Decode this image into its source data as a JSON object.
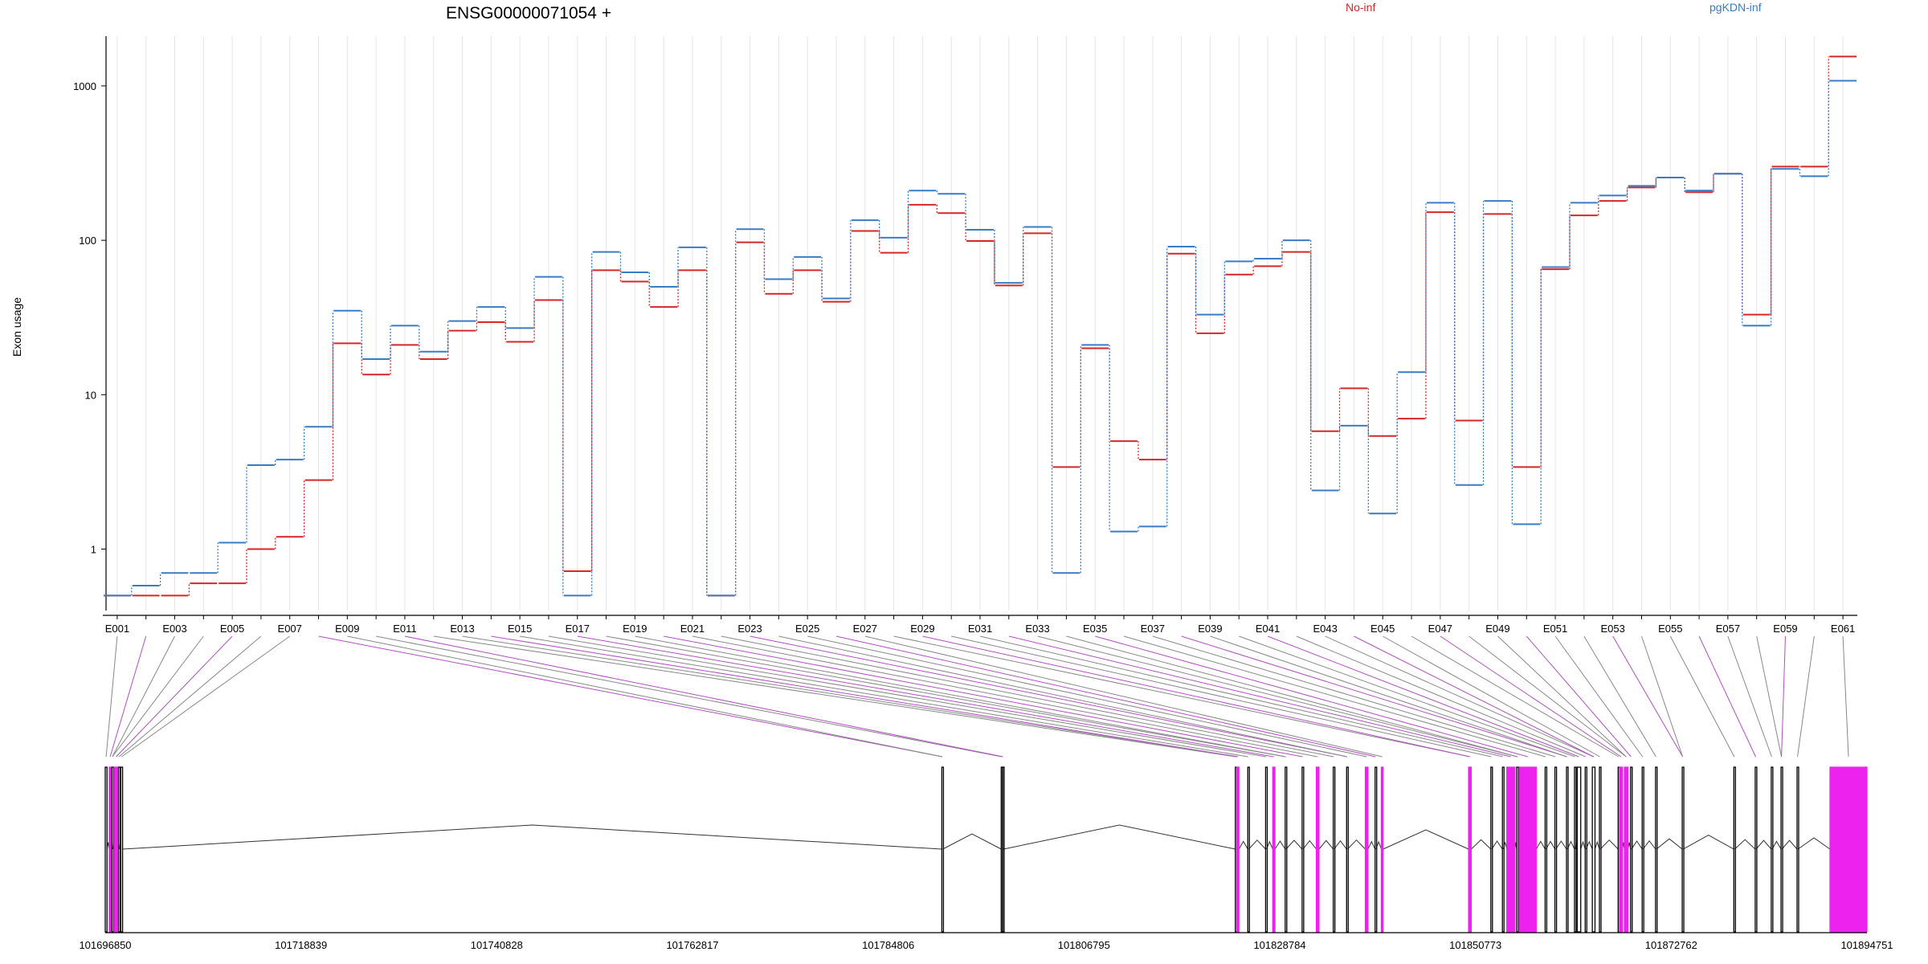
{
  "chart_data": {
    "type": "line",
    "title": "ENSG00000071054 +",
    "ylabel": "Exon usage",
    "xlabel": "",
    "yscale": "log",
    "ylim": [
      0.4,
      2100
    ],
    "yticks": [
      1,
      10,
      100,
      1000
    ],
    "ytick_labels": [
      "1",
      "10",
      "100",
      "1000"
    ],
    "grid": "vertical lines at each exon",
    "legend_placement": "top",
    "colors": {
      "No-inf": "#d62728",
      "pgKDN-inf": "#3a7cc4",
      "exon_black": "#000000",
      "exon_magenta": "#ee22ee",
      "connector_gray": "#888888",
      "connector_purple": "#b050c0"
    },
    "exons": [
      "E001",
      "E002",
      "E003",
      "E004",
      "E005",
      "E006",
      "E007",
      "E008",
      "E009",
      "E010",
      "E011",
      "E012",
      "E013",
      "E014",
      "E015",
      "E016",
      "E017",
      "E018",
      "E019",
      "E020",
      "E021",
      "E022",
      "E023",
      "E024",
      "E025",
      "E026",
      "E027",
      "E028",
      "E029",
      "E030",
      "E031",
      "E032",
      "E033",
      "E034",
      "E035",
      "E036",
      "E037",
      "E038",
      "E039",
      "E040",
      "E041",
      "E042",
      "E043",
      "E044",
      "E045",
      "E046",
      "E047",
      "E048",
      "E049",
      "E050",
      "E051",
      "E052",
      "E053",
      "E054",
      "E055",
      "E056",
      "E057",
      "E058",
      "E059",
      "E060",
      "E061"
    ],
    "x_tick_labels": [
      "E001",
      "E003",
      "E005",
      "E007",
      "E009",
      "E011",
      "E013",
      "E015",
      "E017",
      "E019",
      "E021",
      "E023",
      "E025",
      "E027",
      "E029",
      "E031",
      "E033",
      "E035",
      "E037",
      "E039",
      "E041",
      "E043",
      "E045",
      "E047",
      "E049",
      "E051",
      "E053",
      "E055",
      "E057",
      "E059",
      "E061"
    ],
    "series": [
      {
        "name": "No-inf",
        "color": "#d62728",
        "values": [
          0.5,
          0.5,
          0.5,
          0.6,
          0.6,
          1.0,
          1.2,
          2.8,
          21.5,
          13.5,
          21,
          17,
          26,
          29.5,
          22,
          41,
          0.72,
          64,
          54,
          37,
          64,
          0.5,
          97,
          45,
          64,
          40,
          115,
          83,
          170,
          150,
          99,
          51,
          111,
          3.4,
          20,
          5.0,
          3.8,
          82,
          25,
          60,
          68,
          84,
          5.8,
          11,
          5.4,
          7.0,
          152,
          6.8,
          148,
          3.4,
          65,
          145,
          180,
          220,
          255,
          205,
          270,
          33,
          300,
          300,
          1550
        ]
      },
      {
        "name": "pgKDN-inf",
        "color": "#3a7cc4",
        "values": [
          0.5,
          0.58,
          0.7,
          0.7,
          1.1,
          3.5,
          3.8,
          6.2,
          35,
          17,
          28,
          19,
          30,
          37,
          27,
          58,
          0.5,
          84,
          62,
          50,
          90,
          0.5,
          118,
          56,
          78,
          42,
          135,
          104,
          210,
          200,
          117,
          53,
          122,
          0.7,
          21,
          1.3,
          1.4,
          91,
          33,
          73,
          76,
          100,
          2.4,
          6.3,
          1.7,
          14,
          175,
          2.6,
          180,
          1.45,
          67,
          175,
          195,
          225,
          255,
          210,
          270,
          28,
          290,
          260,
          1080
        ]
      }
    ]
  },
  "title": "ENSG00000071054 +",
  "legend": [
    {
      "label": "No-inf",
      "color": "#d62728"
    },
    {
      "label": "pgKDN-inf",
      "color": "#3a7cc4"
    }
  ],
  "genomic_axis": {
    "labels": [
      "101696850",
      "101718839",
      "101740828",
      "101762817",
      "101784806",
      "101806795",
      "101828784",
      "101850773",
      "101872762",
      "101894751"
    ],
    "range": [
      101696850,
      101894751
    ]
  },
  "gene_model": {
    "exons": [
      {
        "start": 101696850,
        "end": 101697050,
        "type": "black"
      },
      {
        "start": 101697300,
        "end": 101697500,
        "type": "magenta"
      },
      {
        "start": 101697600,
        "end": 101697700,
        "type": "black"
      },
      {
        "start": 101697850,
        "end": 101698300,
        "type": "magenta"
      },
      {
        "start": 101698350,
        "end": 101698450,
        "type": "black"
      },
      {
        "start": 101698600,
        "end": 101698800,
        "type": "black"
      },
      {
        "start": 101790830,
        "end": 101790930,
        "type": "black"
      },
      {
        "start": 101797500,
        "end": 101797600,
        "type": "black"
      },
      {
        "start": 101797650,
        "end": 101797750,
        "type": "black"
      },
      {
        "start": 101823800,
        "end": 101823900,
        "type": "black"
      },
      {
        "start": 101823950,
        "end": 101824200,
        "type": "magenta"
      },
      {
        "start": 101825200,
        "end": 101825300,
        "type": "black"
      },
      {
        "start": 101827200,
        "end": 101827300,
        "type": "black"
      },
      {
        "start": 101828000,
        "end": 101828250,
        "type": "magenta"
      },
      {
        "start": 101829400,
        "end": 101829500,
        "type": "black"
      },
      {
        "start": 101831300,
        "end": 101831400,
        "type": "black"
      },
      {
        "start": 101832900,
        "end": 101833200,
        "type": "magenta"
      },
      {
        "start": 101834800,
        "end": 101834900,
        "type": "black"
      },
      {
        "start": 101836300,
        "end": 101836400,
        "type": "black"
      },
      {
        "start": 101838400,
        "end": 101838700,
        "type": "magenta"
      },
      {
        "start": 101839500,
        "end": 101839600,
        "type": "black"
      },
      {
        "start": 101840200,
        "end": 101840400,
        "type": "magenta"
      },
      {
        "start": 101850000,
        "end": 101850300,
        "type": "magenta"
      },
      {
        "start": 101852500,
        "end": 101852600,
        "type": "black"
      },
      {
        "start": 101853800,
        "end": 101853900,
        "type": "black"
      },
      {
        "start": 101854300,
        "end": 101855200,
        "type": "magenta"
      },
      {
        "start": 101855400,
        "end": 101855600,
        "type": "black"
      },
      {
        "start": 101855700,
        "end": 101857600,
        "type": "magenta"
      },
      {
        "start": 101858600,
        "end": 101858700,
        "type": "black"
      },
      {
        "start": 101859700,
        "end": 101859800,
        "type": "black"
      },
      {
        "start": 101861000,
        "end": 101861100,
        "type": "black"
      },
      {
        "start": 101861900,
        "end": 101862000,
        "type": "black"
      },
      {
        "start": 101862200,
        "end": 101862600,
        "type": "black"
      },
      {
        "start": 101863100,
        "end": 101863200,
        "type": "black"
      },
      {
        "start": 101863900,
        "end": 101864200,
        "type": "black"
      },
      {
        "start": 101864700,
        "end": 101864800,
        "type": "black"
      },
      {
        "start": 101866800,
        "end": 101866900,
        "type": "black"
      },
      {
        "start": 101866950,
        "end": 101867300,
        "type": "magenta"
      },
      {
        "start": 101867500,
        "end": 101867900,
        "type": "magenta"
      },
      {
        "start": 101868200,
        "end": 101868300,
        "type": "black"
      },
      {
        "start": 101869500,
        "end": 101869600,
        "type": "black"
      },
      {
        "start": 101871000,
        "end": 101871100,
        "type": "black"
      },
      {
        "start": 101874000,
        "end": 101874100,
        "type": "black"
      },
      {
        "start": 101879800,
        "end": 101879900,
        "type": "black"
      },
      {
        "start": 101882200,
        "end": 101882300,
        "type": "black"
      },
      {
        "start": 101884000,
        "end": 101884100,
        "type": "black"
      },
      {
        "start": 101885100,
        "end": 101885200,
        "type": "black"
      },
      {
        "start": 101886900,
        "end": 101887000,
        "type": "black"
      },
      {
        "start": 101890600,
        "end": 101894751,
        "type": "magenta"
      }
    ]
  }
}
